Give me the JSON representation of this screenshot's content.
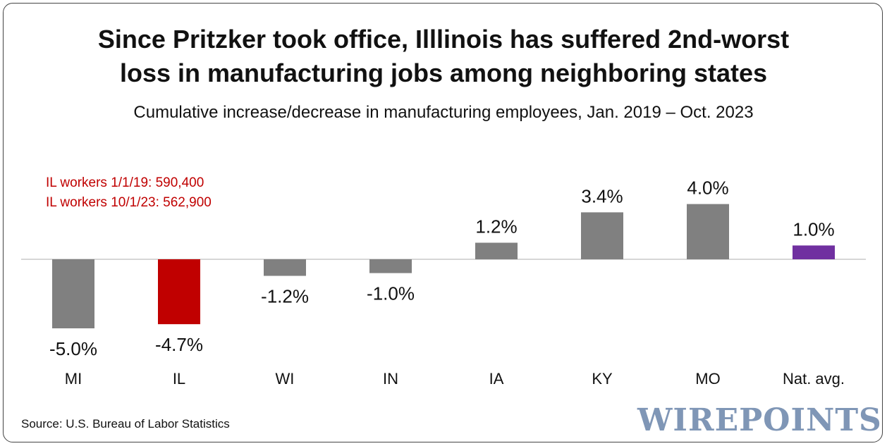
{
  "chart_data": {
    "type": "bar",
    "title_line1": "Since Pritzker took office, Illlinois has suffered 2nd-worst",
    "title_line2": "loss in manufacturing jobs among neighboring states",
    "subtitle": "Cumulative increase/decrease in manufacturing employees, Jan. 2019 – Oct. 2023",
    "categories": [
      "MI",
      "IL",
      "WI",
      "IN",
      "IA",
      "KY",
      "MO",
      "Nat. avg."
    ],
    "values": [
      -5.0,
      -4.7,
      -1.2,
      -1.0,
      1.2,
      3.4,
      4.0,
      1.0
    ],
    "data_labels": [
      "-5.0%",
      "-4.7%",
      "-1.2%",
      "-1.0%",
      "1.2%",
      "3.4%",
      "4.0%",
      "1.0%"
    ],
    "bar_colors": [
      "#808080",
      "#c00000",
      "#808080",
      "#808080",
      "#808080",
      "#808080",
      "#808080",
      "#7030a0"
    ],
    "unit": "%",
    "annotations": [
      "IL workers 1/1/19: 590,400",
      "IL workers 10/1/23: 562,900"
    ],
    "source": "Source: U.S. Bureau of Labor Statistics",
    "xlabel": "",
    "ylabel": "",
    "grid": false,
    "legend": "none"
  },
  "brand": "WIREPOINTS",
  "colors": {
    "neutral_bar": "#808080",
    "highlight_bar": "#c00000",
    "national_bar": "#7030a0",
    "annotation_text": "#c00000",
    "brand": "#7f96b6"
  }
}
